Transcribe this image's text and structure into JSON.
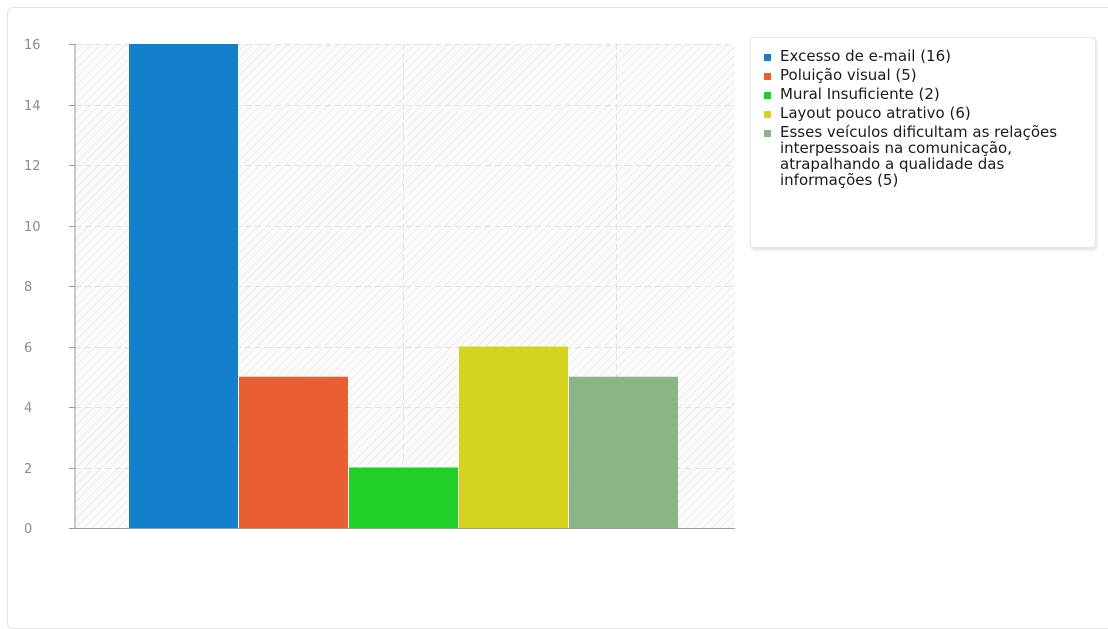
{
  "chart_data": {
    "type": "bar",
    "categories": [
      "Excesso de e-mail (16)",
      "Poluição visual (5)",
      "Mural Insuficiente (2)",
      "Layout pouco atrativo (6)",
      "Esses veículos dificultam as relações interpessoais na comunicação, atrapalhando a qualidade das informações (5)"
    ],
    "values": [
      16,
      5,
      2,
      6,
      5
    ],
    "colors": [
      "#1480cc",
      "#e85f33",
      "#21cf29",
      "#d4d41f",
      "#8ab587"
    ],
    "yticks": [
      "0",
      "2",
      "4",
      "6",
      "8",
      "10",
      "12",
      "14",
      "16"
    ],
    "ylim": [
      0,
      16
    ],
    "title": "",
    "xlabel": "",
    "ylabel": "",
    "grid": true,
    "legend_position": "right"
  }
}
